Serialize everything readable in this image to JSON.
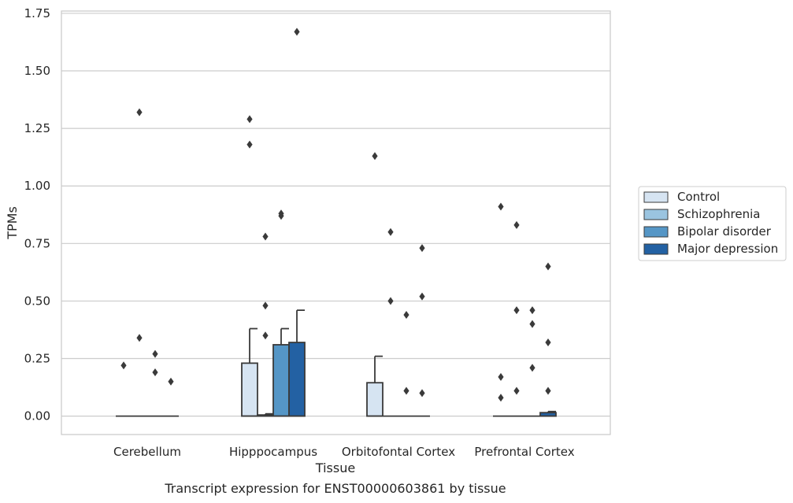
{
  "chart_data": {
    "type": "bar",
    "title": "Transcript expression for ENST00000603861 by tissue",
    "xlabel": "Tissue",
    "ylabel": "TPMs",
    "ylim": [
      -0.08,
      1.76
    ],
    "yticks": [
      "0.00",
      "0.25",
      "0.50",
      "0.75",
      "1.00",
      "1.25",
      "1.50",
      "1.75"
    ],
    "ytick_values": [
      0,
      0.25,
      0.5,
      0.75,
      1.0,
      1.25,
      1.5,
      1.75
    ],
    "grid": true,
    "legend_position": "right",
    "categories": [
      "Cerebellum",
      "Hipppocampus",
      "Orbitofontal Cortex",
      "Prefrontal Cortex"
    ],
    "series": [
      {
        "name": "Control",
        "color": "#d6e4f2",
        "boxes": [
          {
            "q1": 0,
            "median": 0,
            "q3": 0,
            "whisker_high": 0,
            "outliers": [
              0.22
            ]
          },
          {
            "q1": 0,
            "median": 0,
            "q3": 0.23,
            "whisker_high": 0.38,
            "outliers": [
              1.29,
              1.18
            ]
          },
          {
            "q1": 0,
            "median": 0,
            "q3": 0.145,
            "whisker_high": 0.26,
            "outliers": [
              1.13
            ]
          },
          {
            "q1": 0,
            "median": 0,
            "q3": 0,
            "whisker_high": 0,
            "outliers": [
              0.91,
              0.17,
              0.08
            ]
          }
        ]
      },
      {
        "name": "Schizophrenia",
        "color": "#9ac4e0",
        "boxes": [
          {
            "q1": 0,
            "median": 0,
            "q3": 0,
            "whisker_high": 0,
            "outliers": [
              1.32,
              0.34
            ]
          },
          {
            "q1": 0,
            "median": 0,
            "q3": 0.005,
            "whisker_high": 0.01,
            "outliers": [
              0.78,
              0.48,
              0.35
            ]
          },
          {
            "q1": 0,
            "median": 0,
            "q3": 0,
            "whisker_high": 0,
            "outliers": [
              0.8,
              0.5
            ]
          },
          {
            "q1": 0,
            "median": 0,
            "q3": 0,
            "whisker_high": 0,
            "outliers": [
              0.83,
              0.46,
              0.11
            ]
          }
        ]
      },
      {
        "name": "Bipolar disorder",
        "color": "#5596c6",
        "boxes": [
          {
            "q1": 0,
            "median": 0,
            "q3": 0,
            "whisker_high": 0,
            "outliers": [
              0.27,
              0.19
            ]
          },
          {
            "q1": 0,
            "median": 0,
            "q3": 0.31,
            "whisker_high": 0.38,
            "outliers": [
              0.88,
              0.87
            ]
          },
          {
            "q1": 0,
            "median": 0,
            "q3": 0,
            "whisker_high": 0,
            "outliers": [
              0.44,
              0.11
            ]
          },
          {
            "q1": 0,
            "median": 0,
            "q3": 0,
            "whisker_high": 0,
            "outliers": [
              0.46,
              0.4,
              0.21
            ]
          }
        ]
      },
      {
        "name": "Major depression",
        "color": "#2361a3",
        "boxes": [
          {
            "q1": 0,
            "median": 0,
            "q3": 0,
            "whisker_high": 0,
            "outliers": [
              0.15
            ]
          },
          {
            "q1": 0,
            "median": 0,
            "q3": 0.32,
            "whisker_high": 0.46,
            "outliers": [
              1.67
            ]
          },
          {
            "q1": 0,
            "median": 0,
            "q3": 0,
            "whisker_high": 0,
            "outliers": [
              0.73,
              0.52,
              0.1
            ]
          },
          {
            "q1": 0,
            "median": 0,
            "q3": 0.015,
            "whisker_high": 0.02,
            "outliers": [
              0.65,
              0.32,
              0.11
            ]
          }
        ]
      }
    ]
  }
}
